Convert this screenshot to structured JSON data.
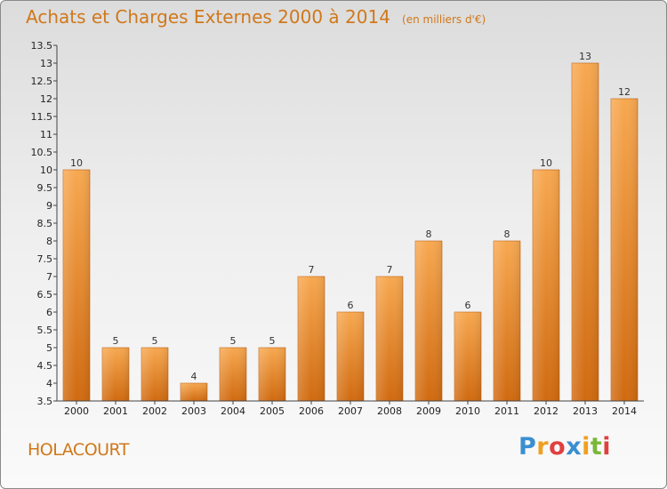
{
  "header": {
    "title": "Achats et Charges Externes 2000 à 2014",
    "unit": "(en milliers d'€)"
  },
  "commune": "HOLACOURT",
  "logo": {
    "letters": [
      "P",
      "r",
      "o",
      "x",
      "i",
      "t",
      "i"
    ],
    "colors": [
      "#3a8fd0",
      "#f0a020",
      "#e04040",
      "#3a8fd0",
      "#f0a020",
      "#7ab83a",
      "#e04040"
    ]
  },
  "chart_data": {
    "type": "bar",
    "title": "Achats et Charges Externes 2000 à 2014",
    "subtitle": "(en milliers d'€)",
    "categories": [
      "2000",
      "2001",
      "2002",
      "2003",
      "2004",
      "2005",
      "2006",
      "2007",
      "2008",
      "2009",
      "2010",
      "2011",
      "2012",
      "2013",
      "2014"
    ],
    "values": [
      10,
      5,
      5,
      4,
      5,
      5,
      7,
      6,
      7,
      8,
      6,
      8,
      10,
      13,
      12
    ],
    "data_labels": [
      "10",
      "5",
      "5",
      "4",
      "5",
      "5",
      "7",
      "6",
      "7",
      "8",
      "6",
      "8",
      "10",
      "13",
      "12"
    ],
    "ylim": [
      3.5,
      13.5
    ],
    "yticks": [
      "3.5",
      "4",
      "4.5",
      "5",
      "5.5",
      "6",
      "6.5",
      "7",
      "7.5",
      "8",
      "8.5",
      "9",
      "9.5",
      "10",
      "10.5",
      "11",
      "11.5",
      "12",
      "12.5",
      "13",
      "13.5"
    ],
    "bar_color": "#f08c30",
    "grid": false,
    "legend": "none"
  }
}
